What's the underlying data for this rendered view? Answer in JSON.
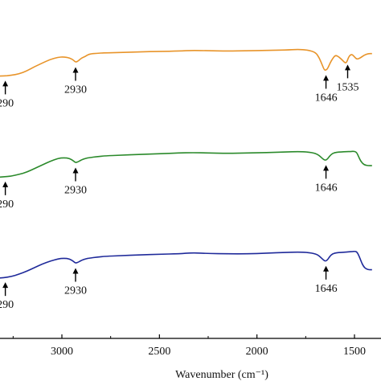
{
  "chart_data": {
    "type": "line",
    "title": "",
    "xlabel": "Wavenumber (cm⁻¹)",
    "ylabel": "",
    "xlim": [
      3390,
      1410
    ],
    "x_reversed": true,
    "xticks": [
      3000,
      2500,
      2000,
      1500
    ],
    "grid": false,
    "legend": "none",
    "series": [
      {
        "color": "#e8942a",
        "x": [
          3390,
          3360,
          3330,
          3300,
          3260,
          3220,
          3180,
          3140,
          3100,
          3060,
          3020,
          2990,
          2960,
          2940,
          2930,
          2915,
          2900,
          2880,
          2860,
          2820,
          2780,
          2700,
          2600,
          2500,
          2400,
          2330,
          2250,
          2150,
          2050,
          1950,
          1850,
          1790,
          1740,
          1700,
          1680,
          1665,
          1655,
          1646,
          1636,
          1625,
          1612,
          1598,
          1580,
          1560,
          1548,
          1540,
          1535,
          1530,
          1522,
          1512,
          1500,
          1488,
          1470,
          1450,
          1430,
          1410
        ],
        "y": [
          0.86,
          0.86,
          0.88,
          0.88,
          0.86,
          0.82,
          0.74,
          0.62,
          0.52,
          0.42,
          0.36,
          0.35,
          0.38,
          0.44,
          0.5,
          0.46,
          0.38,
          0.34,
          0.27,
          0.25,
          0.24,
          0.23,
          0.21,
          0.2,
          0.19,
          0.17,
          0.18,
          0.19,
          0.18,
          0.17,
          0.16,
          0.14,
          0.16,
          0.22,
          0.38,
          0.58,
          0.71,
          0.72,
          0.66,
          0.52,
          0.4,
          0.3,
          0.35,
          0.45,
          0.52,
          0.5,
          0.43,
          0.36,
          0.3,
          0.28,
          0.35,
          0.42,
          0.38,
          0.3,
          0.26,
          0.26
        ]
      },
      {
        "color": "#2b8a2b",
        "x": [
          3390,
          3340,
          3300,
          3260,
          3220,
          3180,
          3140,
          3100,
          3060,
          3020,
          2990,
          2960,
          2940,
          2930,
          2915,
          2900,
          2880,
          2860,
          2820,
          2780,
          2700,
          2600,
          2500,
          2400,
          2330,
          2250,
          2150,
          2050,
          1950,
          1850,
          1790,
          1740,
          1700,
          1680,
          1665,
          1655,
          1646,
          1636,
          1625,
          1612,
          1600,
          1590,
          1570,
          1540,
          1520,
          1500,
          1488,
          1478,
          1468,
          1450,
          1430,
          1410
        ],
        "y": [
          0.9,
          0.9,
          0.89,
          0.87,
          0.82,
          0.76,
          0.66,
          0.56,
          0.46,
          0.38,
          0.36,
          0.38,
          0.45,
          0.5,
          0.47,
          0.42,
          0.38,
          0.36,
          0.33,
          0.31,
          0.29,
          0.27,
          0.25,
          0.23,
          0.22,
          0.23,
          0.24,
          0.23,
          0.22,
          0.2,
          0.19,
          0.2,
          0.24,
          0.3,
          0.38,
          0.42,
          0.43,
          0.38,
          0.3,
          0.24,
          0.22,
          0.21,
          0.2,
          0.19,
          0.19,
          0.18,
          0.22,
          0.34,
          0.46,
          0.56,
          0.58,
          0.58
        ]
      },
      {
        "color": "#1f2a9a",
        "x": [
          3390,
          3340,
          3300,
          3260,
          3220,
          3180,
          3140,
          3100,
          3060,
          3020,
          2990,
          2960,
          2940,
          2930,
          2915,
          2900,
          2880,
          2860,
          2820,
          2780,
          2700,
          2600,
          2500,
          2400,
          2330,
          2250,
          2150,
          2050,
          1950,
          1850,
          1790,
          1740,
          1700,
          1680,
          1665,
          1655,
          1646,
          1636,
          1625,
          1612,
          1600,
          1590,
          1570,
          1540,
          1520,
          1500,
          1488,
          1478,
          1468,
          1455,
          1440,
          1425,
          1410
        ],
        "y": [
          0.92,
          0.92,
          0.9,
          0.87,
          0.8,
          0.72,
          0.62,
          0.52,
          0.44,
          0.38,
          0.36,
          0.38,
          0.45,
          0.5,
          0.47,
          0.42,
          0.38,
          0.36,
          0.33,
          0.31,
          0.29,
          0.27,
          0.25,
          0.24,
          0.21,
          0.23,
          0.24,
          0.24,
          0.22,
          0.2,
          0.19,
          0.2,
          0.24,
          0.3,
          0.38,
          0.43,
          0.44,
          0.39,
          0.3,
          0.24,
          0.22,
          0.21,
          0.2,
          0.19,
          0.18,
          0.17,
          0.18,
          0.28,
          0.42,
          0.58,
          0.66,
          0.68,
          0.68
        ]
      }
    ],
    "annotations": [
      {
        "series": 0,
        "x": 3290,
        "label": "290"
      },
      {
        "series": 0,
        "x": 2930,
        "label": "2930"
      },
      {
        "series": 0,
        "x": 1646,
        "label": "1646"
      },
      {
        "series": 0,
        "x": 1535,
        "label": "1535"
      },
      {
        "series": 1,
        "x": 3290,
        "label": "290"
      },
      {
        "series": 1,
        "x": 2930,
        "label": "2930"
      },
      {
        "series": 1,
        "x": 1646,
        "label": "1646"
      },
      {
        "series": 2,
        "x": 3290,
        "label": "290"
      },
      {
        "series": 2,
        "x": 2930,
        "label": "2930"
      },
      {
        "series": 2,
        "x": 1646,
        "label": "1646"
      }
    ]
  }
}
